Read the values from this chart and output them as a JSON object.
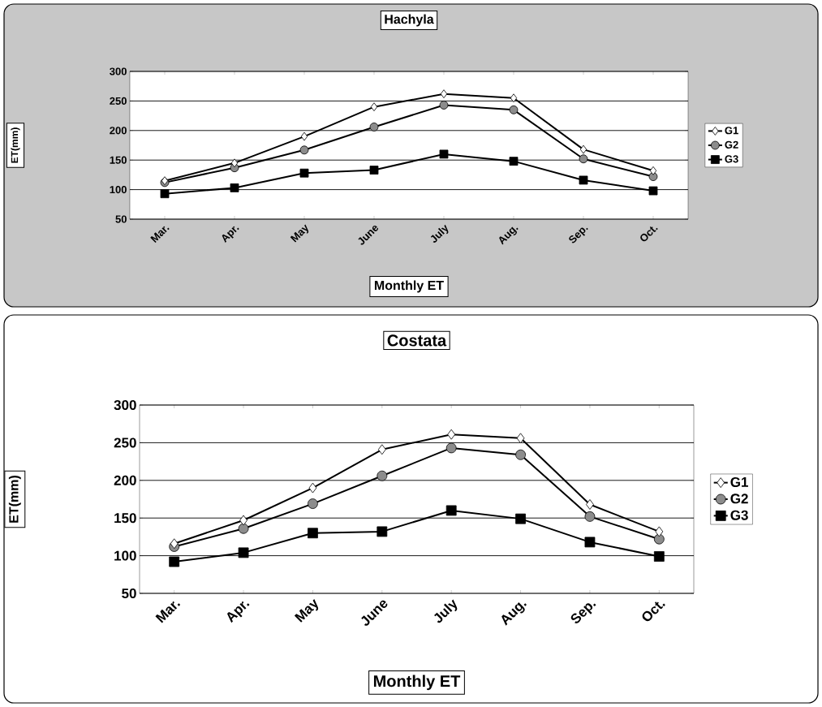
{
  "chart_data": [
    {
      "type": "line",
      "title": "Hachyla",
      "xlabel": "Monthly ET",
      "ylabel": "ET(mm)",
      "categories": [
        "Mar.",
        "Apr.",
        "May",
        "June",
        "July",
        "Aug.",
        "Sep.",
        "Oct."
      ],
      "ylim": [
        50,
        300
      ],
      "yticks": [
        50,
        100,
        150,
        200,
        250,
        300
      ],
      "grid": "y",
      "legend": "right",
      "series": [
        {
          "name": "G1",
          "color": "#000000",
          "marker": "diamond",
          "values": [
            115,
            145,
            190,
            240,
            262,
            255,
            168,
            132
          ]
        },
        {
          "name": "G2",
          "color": "#000000",
          "marker": "circle",
          "values": [
            112,
            137,
            167,
            206,
            243,
            235,
            152,
            122
          ]
        },
        {
          "name": "G3",
          "color": "#000000",
          "marker": "square",
          "values": [
            93,
            103,
            128,
            133,
            160,
            148,
            116,
            98
          ]
        }
      ]
    },
    {
      "type": "line",
      "title": "Costata",
      "xlabel": "Monthly ET",
      "ylabel": "ET(mm)",
      "categories": [
        "Mar.",
        "Apr.",
        "May",
        "June",
        "July",
        "Aug.",
        "Sep.",
        "Oct."
      ],
      "ylim": [
        50,
        300
      ],
      "yticks": [
        50,
        100,
        150,
        200,
        250,
        300
      ],
      "grid": "y",
      "legend": "right",
      "series": [
        {
          "name": "G1",
          "color": "#000000",
          "marker": "diamond",
          "values": [
            116,
            147,
            190,
            241,
            261,
            256,
            168,
            132
          ]
        },
        {
          "name": "G2",
          "color": "#000000",
          "marker": "circle",
          "values": [
            112,
            136,
            169,
            206,
            243,
            234,
            152,
            122
          ]
        },
        {
          "name": "G3",
          "color": "#000000",
          "marker": "square",
          "values": [
            92,
            104,
            130,
            132,
            160,
            149,
            118,
            99
          ]
        }
      ]
    }
  ]
}
